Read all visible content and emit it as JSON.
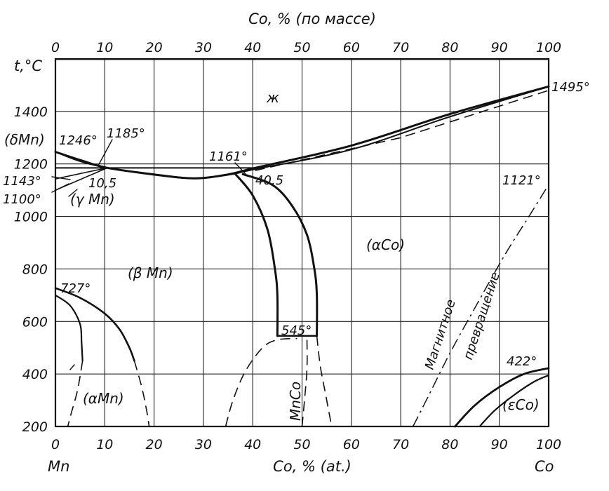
{
  "chart_data": {
    "type": "phase-diagram",
    "title_top": "Co, % (по массе)",
    "xlabel_bottom": "Co, % (at.)",
    "ylabel": "t,°C",
    "left_element": "Mn",
    "right_element": "Co",
    "x_range": [
      0,
      100
    ],
    "y_range": [
      200,
      1600
    ],
    "grid": true,
    "x_ticks_bottom": [
      "0",
      "10",
      "20",
      "30",
      "40",
      "50",
      "60",
      "70",
      "80",
      "90",
      "100"
    ],
    "x_ticks_top": [
      "0",
      "10",
      "20",
      "30",
      "40",
      "50",
      "60",
      "70",
      "80",
      "90",
      "100"
    ],
    "y_ticks": [
      "200",
      "400",
      "600",
      "800",
      "1000",
      "1200",
      "1400"
    ],
    "phase_labels": [
      "ж",
      "(δMn)",
      "(γ Mn)",
      "(β Mn)",
      "(αCo)",
      "(αMn)",
      "MnCo",
      "(εCo)"
    ],
    "magnetic_label": [
      "Магнитное",
      "превращение"
    ],
    "annotations": [
      "1495°",
      "1246°",
      "1185°",
      "1161°",
      "1143°",
      "1100°",
      "1121°",
      "727°",
      "545°",
      "422°",
      "10,5",
      "40,5"
    ],
    "curves": {
      "liquidus": [
        [
          0,
          1246
        ],
        [
          5,
          1215
        ],
        [
          10.5,
          1185
        ],
        [
          20,
          1160
        ],
        [
          28,
          1145
        ],
        [
          35,
          1160
        ],
        [
          40.5,
          1185
        ],
        [
          60,
          1270
        ],
        [
          80,
          1390
        ],
        [
          100,
          1495
        ]
      ],
      "solidus": [
        [
          0,
          1246
        ],
        [
          5,
          1210
        ],
        [
          10.5,
          1185
        ],
        [
          20,
          1158
        ],
        [
          28,
          1145
        ],
        [
          35,
          1158
        ],
        [
          40.5,
          1180
        ],
        [
          60,
          1255
        ],
        [
          80,
          1380
        ],
        [
          100,
          1495
        ]
      ],
      "beta_mn_boundary": [
        [
          36.5,
          1161
        ],
        [
          40,
          1080
        ],
        [
          43,
          950
        ],
        [
          44.5,
          800
        ],
        [
          45,
          700
        ],
        [
          45,
          545
        ]
      ],
      "alpha_co_boundary": [
        [
          38,
          1161
        ],
        [
          44,
          1120
        ],
        [
          48,
          1040
        ],
        [
          51,
          930
        ],
        [
          52.5,
          800
        ],
        [
          53,
          700
        ],
        [
          53,
          545
        ]
      ],
      "alpha_mn_solvus": [
        [
          0,
          727
        ],
        [
          5,
          690
        ],
        [
          10,
          630
        ],
        [
          13,
          570
        ],
        [
          15,
          500
        ],
        [
          16,
          450
        ]
      ],
      "alpha_mn_inner": [
        [
          0,
          700
        ],
        [
          3,
          660
        ],
        [
          5,
          590
        ],
        [
          5.3,
          520
        ],
        [
          5.5,
          450
        ]
      ],
      "epsilon_co": [
        [
          81,
          200
        ],
        [
          85,
          280
        ],
        [
          90,
          350
        ],
        [
          95,
          400
        ],
        [
          100,
          422
        ]
      ],
      "epsilon_co_inner": [
        [
          86,
          200
        ],
        [
          89,
          260
        ],
        [
          93,
          320
        ],
        [
          97,
          370
        ],
        [
          100,
          395
        ]
      ],
      "magnetic": [
        [
          72.5,
          200
        ],
        [
          76,
          330
        ],
        [
          80,
          480
        ],
        [
          85,
          650
        ],
        [
          91,
          850
        ],
        [
          96,
          1000
        ],
        [
          100,
          1121
        ]
      ]
    }
  }
}
